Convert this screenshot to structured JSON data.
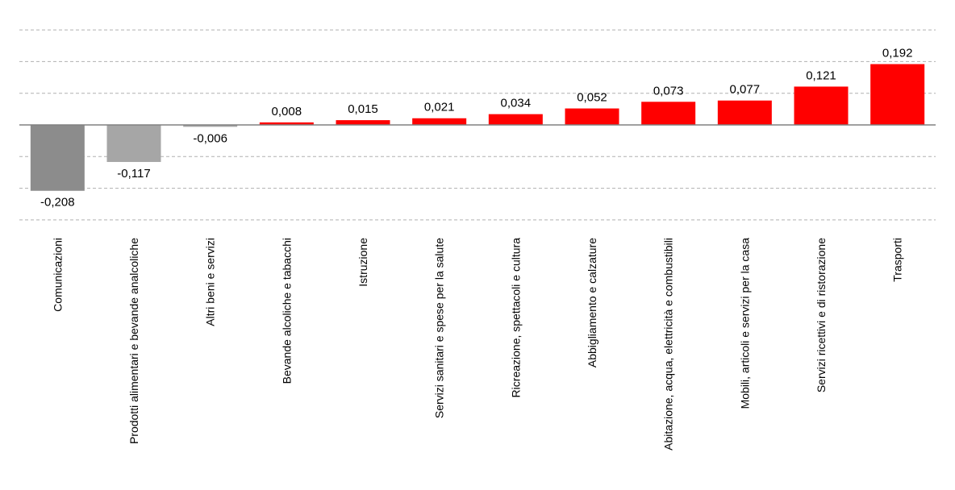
{
  "chart_data": {
    "type": "bar",
    "title": "",
    "xlabel": "",
    "ylabel": "",
    "ylim": [
      -0.3,
      0.4
    ],
    "grid": true,
    "categories": [
      "Comunicazioni",
      "Prodotti alimentari e bevande analcoliche",
      "Altri beni e servizi",
      "Bevande alcoliche e tabacchi",
      "Istruzione",
      "Servizi sanitari e spese per la salute",
      "Ricreazione, spettacoli e cultura",
      "Abbigliamento e calzature",
      "Abitazione, acqua, elettricità e combustibili",
      "Mobili, articoli e servizi per la casa",
      "Servizi ricettivi e di ristorazione",
      "Trasporti"
    ],
    "values": [
      -0.208,
      -0.117,
      -0.006,
      0.008,
      0.015,
      0.021,
      0.034,
      0.052,
      0.073,
      0.077,
      0.121,
      0.192
    ],
    "value_labels": [
      "-0,208",
      "-0,117",
      "-0,006",
      "0,008",
      "0,015",
      "0,021",
      "0,034",
      "0,052",
      "0,073",
      "0,077",
      "0,121",
      "0,192"
    ],
    "colors": {
      "negative_dark": "#8c8c8c",
      "negative_light": "#a6a6a6",
      "positive": "#ff0000",
      "grid": "#b0b0b0",
      "axis": "#808080"
    }
  }
}
